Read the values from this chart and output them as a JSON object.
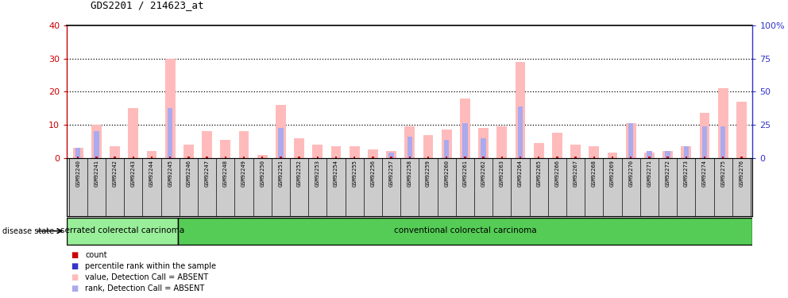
{
  "title": "GDS2201 / 214623_at",
  "samples": [
    "GSM92240",
    "GSM92241",
    "GSM92242",
    "GSM92243",
    "GSM92244",
    "GSM92245",
    "GSM92246",
    "GSM92247",
    "GSM92248",
    "GSM92249",
    "GSM92250",
    "GSM92251",
    "GSM92252",
    "GSM92253",
    "GSM92254",
    "GSM92255",
    "GSM92256",
    "GSM92257",
    "GSM92258",
    "GSM92259",
    "GSM92260",
    "GSM92261",
    "GSM92262",
    "GSM92263",
    "GSM92264",
    "GSM92265",
    "GSM92266",
    "GSM92267",
    "GSM92268",
    "GSM92269",
    "GSM92270",
    "GSM92271",
    "GSM92272",
    "GSM92273",
    "GSM92274",
    "GSM92275",
    "GSM92276"
  ],
  "pink_values": [
    3.0,
    10.0,
    3.5,
    15.0,
    2.0,
    30.0,
    4.0,
    8.0,
    5.5,
    8.0,
    1.0,
    16.0,
    6.0,
    4.0,
    3.5,
    3.5,
    2.5,
    2.0,
    9.5,
    7.0,
    8.5,
    18.0,
    9.0,
    9.5,
    29.0,
    4.5,
    7.5,
    4.0,
    3.5,
    1.5,
    10.5,
    1.5,
    2.0,
    3.5,
    13.5,
    21.0,
    17.0
  ],
  "blue_values": [
    3.0,
    8.0,
    0.0,
    0.0,
    0.0,
    15.0,
    0.0,
    0.0,
    0.0,
    0.0,
    0.0,
    9.0,
    0.0,
    0.0,
    0.0,
    0.0,
    0.0,
    1.5,
    6.5,
    0.0,
    5.5,
    10.5,
    6.0,
    0.0,
    15.5,
    0.0,
    0.0,
    0.0,
    0.0,
    0.0,
    10.5,
    2.0,
    2.0,
    3.5,
    9.5,
    9.5,
    0.0
  ],
  "red_values": [
    0.3,
    0.4,
    0.3,
    0.3,
    0.3,
    0.4,
    0.3,
    0.3,
    0.3,
    0.3,
    0.3,
    0.3,
    0.3,
    0.3,
    0.3,
    0.3,
    0.3,
    0.3,
    0.4,
    0.3,
    0.3,
    0.4,
    0.3,
    0.3,
    0.4,
    0.3,
    0.3,
    0.3,
    0.3,
    0.3,
    0.3,
    0.3,
    0.3,
    0.3,
    0.4,
    0.4,
    0.4
  ],
  "serrated_count": 6,
  "ylim_left": [
    0,
    40
  ],
  "ylim_right": [
    0,
    100
  ],
  "yticks_left": [
    0,
    10,
    20,
    30,
    40
  ],
  "yticks_right": [
    0,
    25,
    50,
    75,
    100
  ],
  "ytick_labels_right": [
    "0",
    "25",
    "50",
    "75",
    "100%"
  ],
  "group1_label": "serrated colerectal carcinoma",
  "group2_label": "conventional colorectal carcinoma",
  "disease_state_label": "disease state",
  "legend_items": [
    {
      "label": "count",
      "color": "#cc0000"
    },
    {
      "label": "percentile rank within the sample",
      "color": "#3333cc"
    },
    {
      "label": "value, Detection Call = ABSENT",
      "color": "#ffbbbb"
    },
    {
      "label": "rank, Detection Call = ABSENT",
      "color": "#aaaaee"
    }
  ],
  "left_axis_color": "#cc0000",
  "right_axis_color": "#3333cc",
  "group1_bg": "#99ee99",
  "group2_bg": "#55cc55",
  "sample_bg": "#cccccc",
  "pink_color": "#ffbbbb",
  "blue_color": "#aaaaee",
  "red_color": "#cc0000"
}
